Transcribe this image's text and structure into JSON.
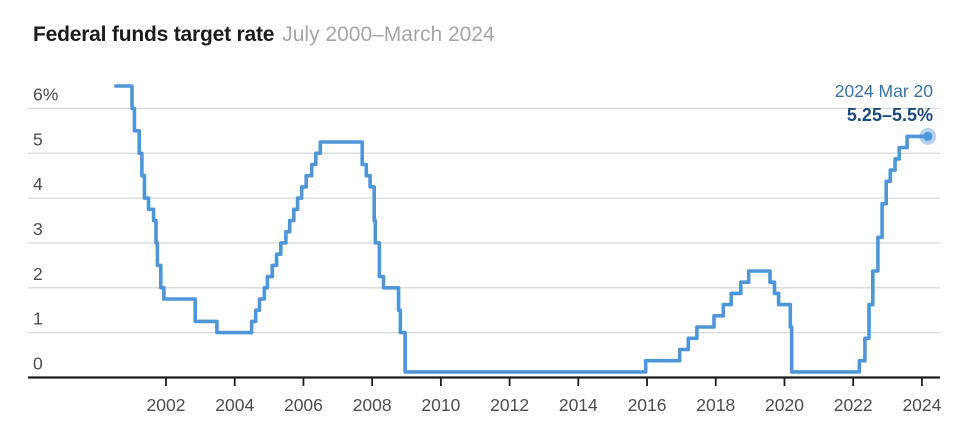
{
  "header": {
    "title": "Federal funds target rate",
    "subtitle": "July 2000–March 2024"
  },
  "chart_data": {
    "type": "line",
    "subtype": "step-after",
    "title": "Federal funds target rate",
    "subtitle": "July 2000–March 2024",
    "xlabel": "",
    "ylabel": "",
    "grid": "horizontal",
    "legend": "none",
    "ylim": [
      0,
      6.5
    ],
    "x_domain_years": [
      2000.54,
      2024.17
    ],
    "x_ticks": [
      {
        "year": 2002,
        "label": "2002"
      },
      {
        "year": 2004,
        "label": "2004"
      },
      {
        "year": 2006,
        "label": "2006"
      },
      {
        "year": 2008,
        "label": "2008"
      },
      {
        "year": 2010,
        "label": "2010"
      },
      {
        "year": 2012,
        "label": "2012"
      },
      {
        "year": 2014,
        "label": "2014"
      },
      {
        "year": 2016,
        "label": "2016"
      },
      {
        "year": 2018,
        "label": "2018"
      },
      {
        "year": 2020,
        "label": "2020"
      },
      {
        "year": 2022,
        "label": "2022"
      },
      {
        "year": 2024,
        "label": "2024"
      }
    ],
    "y_ticks": [
      {
        "value": 6,
        "label": "6%"
      },
      {
        "value": 5,
        "label": "5"
      },
      {
        "value": 4,
        "label": "4"
      },
      {
        "value": 3,
        "label": "3"
      },
      {
        "value": 2,
        "label": "2"
      },
      {
        "value": 1,
        "label": "1"
      },
      {
        "value": 0,
        "label": "0"
      }
    ],
    "series": [
      {
        "name": "Federal funds target rate",
        "points_format": [
          "decimal_year",
          "percent"
        ],
        "points": [
          [
            2000.54,
            6.5
          ],
          [
            2001.01,
            6.0
          ],
          [
            2001.08,
            5.5
          ],
          [
            2001.22,
            5.0
          ],
          [
            2001.3,
            4.5
          ],
          [
            2001.37,
            4.0
          ],
          [
            2001.49,
            3.75
          ],
          [
            2001.64,
            3.5
          ],
          [
            2001.71,
            3.0
          ],
          [
            2001.75,
            2.5
          ],
          [
            2001.85,
            2.0
          ],
          [
            2001.94,
            1.75
          ],
          [
            2002.85,
            1.25
          ],
          [
            2003.48,
            1.0
          ],
          [
            2004.49,
            1.25
          ],
          [
            2004.61,
            1.5
          ],
          [
            2004.72,
            1.75
          ],
          [
            2004.86,
            2.0
          ],
          [
            2004.95,
            2.25
          ],
          [
            2005.09,
            2.5
          ],
          [
            2005.22,
            2.75
          ],
          [
            2005.34,
            3.0
          ],
          [
            2005.49,
            3.25
          ],
          [
            2005.6,
            3.5
          ],
          [
            2005.72,
            3.75
          ],
          [
            2005.83,
            4.0
          ],
          [
            2005.95,
            4.25
          ],
          [
            2006.08,
            4.5
          ],
          [
            2006.24,
            4.75
          ],
          [
            2006.36,
            5.0
          ],
          [
            2006.49,
            5.25
          ],
          [
            2007.71,
            4.75
          ],
          [
            2007.83,
            4.5
          ],
          [
            2007.94,
            4.25
          ],
          [
            2008.06,
            3.5
          ],
          [
            2008.09,
            3.0
          ],
          [
            2008.21,
            2.25
          ],
          [
            2008.33,
            2.0
          ],
          [
            2008.77,
            1.5
          ],
          [
            2008.82,
            1.0
          ],
          [
            2008.96,
            0.125
          ],
          [
            2015.96,
            0.375
          ],
          [
            2016.95,
            0.625
          ],
          [
            2017.2,
            0.875
          ],
          [
            2017.45,
            1.125
          ],
          [
            2017.95,
            1.375
          ],
          [
            2018.22,
            1.625
          ],
          [
            2018.45,
            1.875
          ],
          [
            2018.73,
            2.125
          ],
          [
            2018.96,
            2.375
          ],
          [
            2019.58,
            2.125
          ],
          [
            2019.71,
            1.875
          ],
          [
            2019.83,
            1.625
          ],
          [
            2020.17,
            1.125
          ],
          [
            2020.21,
            0.125
          ],
          [
            2022.18,
            0.375
          ],
          [
            2022.34,
            0.875
          ],
          [
            2022.46,
            1.625
          ],
          [
            2022.57,
            2.375
          ],
          [
            2022.72,
            3.125
          ],
          [
            2022.84,
            3.875
          ],
          [
            2022.96,
            4.375
          ],
          [
            2023.08,
            4.625
          ],
          [
            2023.22,
            4.875
          ],
          [
            2023.34,
            5.125
          ],
          [
            2023.57,
            5.375
          ]
        ],
        "end_year": 2024.17,
        "final_value": 5.375
      }
    ],
    "annotation": {
      "date_label": "2024 Mar 20",
      "value_label": "5.25–5.5%"
    },
    "colors": {
      "line": "#4e96d8",
      "end_dot": "#4e96d8",
      "end_dot_halo": "rgba(78,150,216,0.42)",
      "annotation_date": "#3a71a9",
      "annotation_value": "#1a4a7e",
      "gridline": "#d9d9d9",
      "axis": "#1d1d1d",
      "tick_label": "#4d4d4d",
      "title": "#1c1c1c",
      "subtitle": "#a5a5a5"
    }
  }
}
